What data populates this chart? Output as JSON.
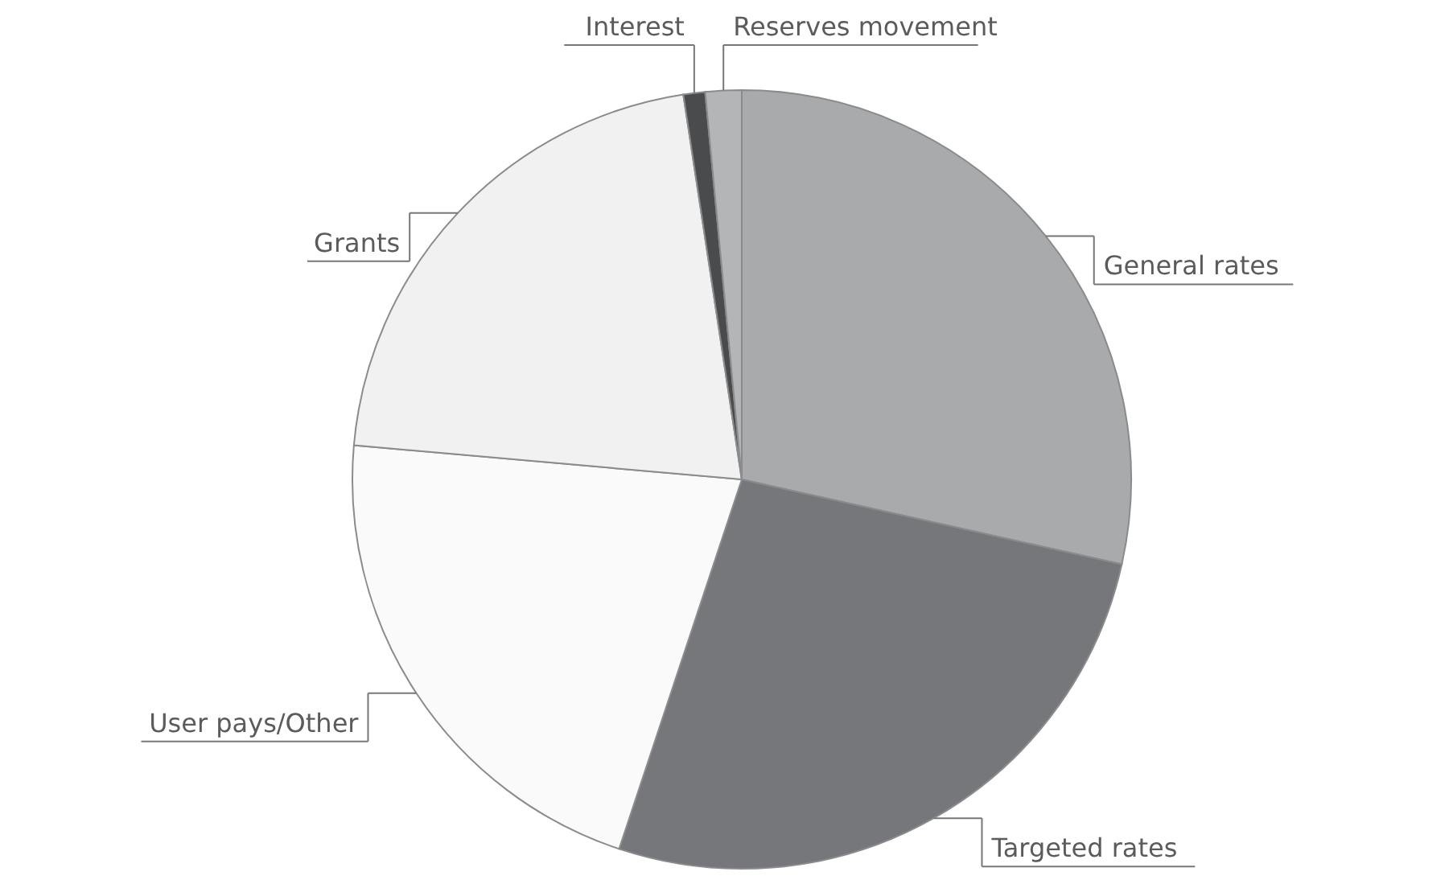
{
  "chart_data": {
    "type": "pie",
    "categories": [
      "General rates",
      "Targeted rates",
      "User pays/Other",
      "Grants",
      "Interest",
      "Reserves movement"
    ],
    "values": [
      28.5,
      26.6,
      21.3,
      21.2,
      0.9,
      1.5
    ],
    "colors": [
      "#a9aaac",
      "#76777a",
      "#fafafa",
      "#f0f1f0",
      "#4a4b4d",
      "#b4b5b7"
    ]
  }
}
